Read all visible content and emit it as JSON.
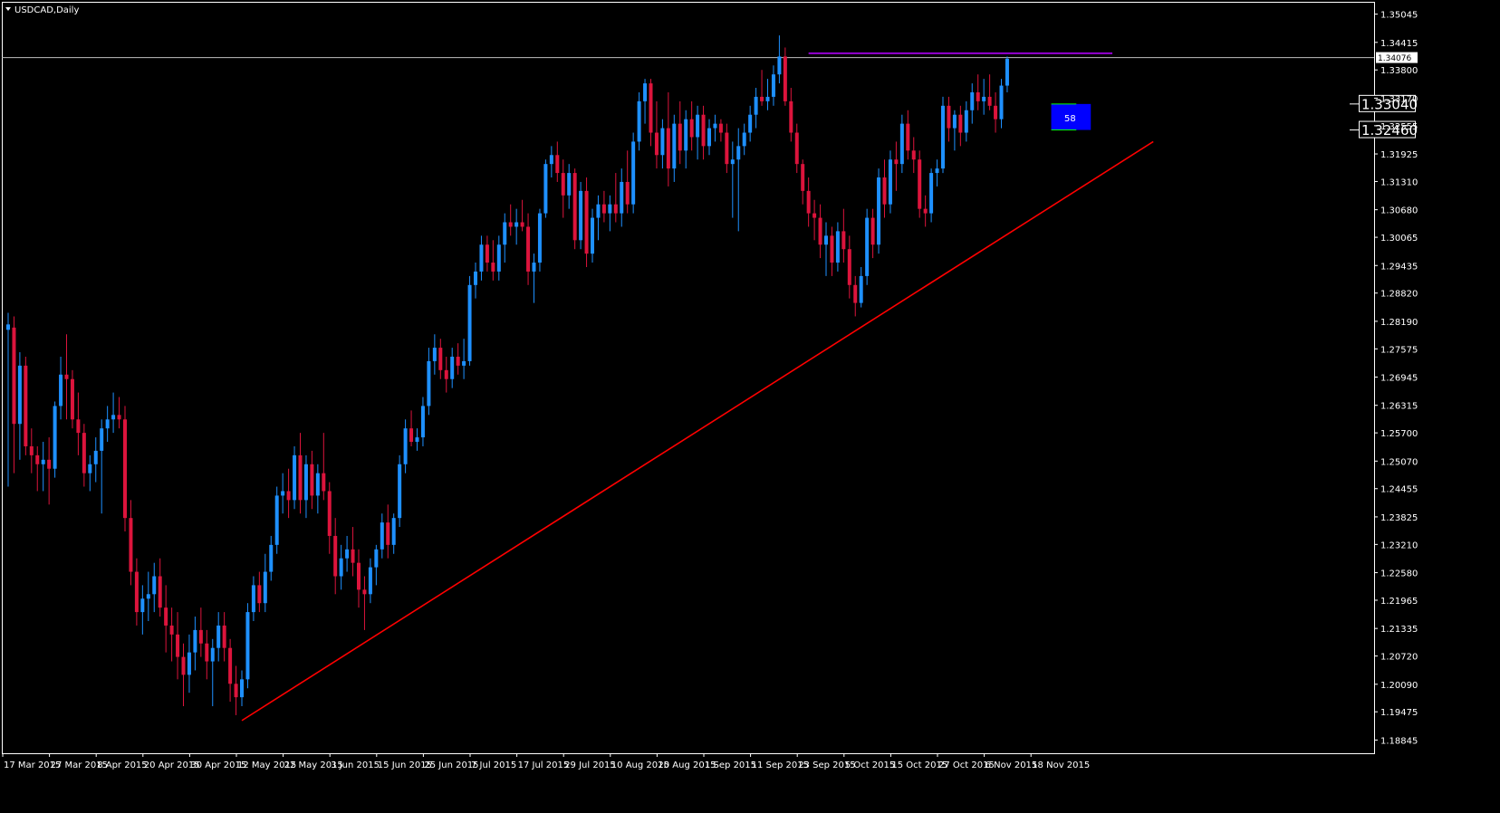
{
  "window": {
    "symbol_title": "USDCAD,Daily"
  },
  "colors": {
    "background": "#000000",
    "frame": "#ffffff",
    "bull": "#1e90ff",
    "bear": "#dc143c",
    "trendline": "#ff0000",
    "resistance": "#9400d3",
    "range_box": "#0000ff",
    "range_edge": "#00ff00",
    "price_line": "#c0c0c0"
  },
  "chart_data": {
    "type": "candlestick",
    "title": "USDCAD,Daily",
    "ylim": [
      1.1855,
      1.3532
    ],
    "y_ticks": [
      "1.35045",
      "1.34415",
      "1.33800",
      "1.33170",
      "1.32555",
      "1.31925",
      "1.31310",
      "1.30680",
      "1.30065",
      "1.29435",
      "1.28820",
      "1.28190",
      "1.27575",
      "1.26945",
      "1.26315",
      "1.25700",
      "1.25070",
      "1.24455",
      "1.23825",
      "1.23210",
      "1.22580",
      "1.21965",
      "1.21335",
      "1.20720",
      "1.20090",
      "1.19475",
      "1.18845"
    ],
    "x_ticks": [
      {
        "label": "17 Mar 2015",
        "bar": 0
      },
      {
        "label": "27 Mar 2015",
        "bar": 8
      },
      {
        "label": "8 Apr 2015",
        "bar": 16
      },
      {
        "label": "20 Apr 2015",
        "bar": 24
      },
      {
        "label": "30 Apr 2015",
        "bar": 32
      },
      {
        "label": "12 May 2015",
        "bar": 40
      },
      {
        "label": "22 May 2015",
        "bar": 48
      },
      {
        "label": "3 Jun 2015",
        "bar": 56
      },
      {
        "label": "15 Jun 2015",
        "bar": 64
      },
      {
        "label": "25 Jun 2015",
        "bar": 72
      },
      {
        "label": "7 Jul 2015",
        "bar": 80
      },
      {
        "label": "17 Jul 2015",
        "bar": 88
      },
      {
        "label": "29 Jul 2015",
        "bar": 96
      },
      {
        "label": "10 Aug 2015",
        "bar": 104
      },
      {
        "label": "20 Aug 2015",
        "bar": 112
      },
      {
        "label": "1 Sep 2015",
        "bar": 120
      },
      {
        "label": "11 Sep 2015",
        "bar": 128
      },
      {
        "label": "23 Sep 2015",
        "bar": 136
      },
      {
        "label": "5 Oct 2015",
        "bar": 144
      },
      {
        "label": "15 Oct 2015",
        "bar": 152
      },
      {
        "label": "27 Oct 2015",
        "bar": 160
      },
      {
        "label": "6 Nov 2015",
        "bar": 168
      },
      {
        "label": "18 Nov 2015",
        "bar": 176
      }
    ],
    "current_price": "1.34076",
    "current_price_value": 1.34076,
    "candles": [
      {
        "o": 1.28,
        "h": 1.2838,
        "l": 1.245,
        "c": 1.2812
      },
      {
        "o": 1.2805,
        "h": 1.283,
        "l": 1.248,
        "c": 1.259
      },
      {
        "o": 1.259,
        "h": 1.275,
        "l": 1.251,
        "c": 1.272
      },
      {
        "o": 1.272,
        "h": 1.274,
        "l": 1.252,
        "c": 1.254
      },
      {
        "o": 1.254,
        "h": 1.258,
        "l": 1.248,
        "c": 1.252
      },
      {
        "o": 1.252,
        "h": 1.254,
        "l": 1.244,
        "c": 1.25
      },
      {
        "o": 1.25,
        "h": 1.255,
        "l": 1.244,
        "c": 1.251
      },
      {
        "o": 1.251,
        "h": 1.256,
        "l": 1.241,
        "c": 1.249
      },
      {
        "o": 1.249,
        "h": 1.264,
        "l": 1.247,
        "c": 1.263
      },
      {
        "o": 1.263,
        "h": 1.274,
        "l": 1.26,
        "c": 1.27
      },
      {
        "o": 1.27,
        "h": 1.279,
        "l": 1.26,
        "c": 1.269
      },
      {
        "o": 1.269,
        "h": 1.271,
        "l": 1.258,
        "c": 1.26
      },
      {
        "o": 1.26,
        "h": 1.266,
        "l": 1.252,
        "c": 1.257
      },
      {
        "o": 1.257,
        "h": 1.259,
        "l": 1.245,
        "c": 1.248
      },
      {
        "o": 1.248,
        "h": 1.252,
        "l": 1.244,
        "c": 1.25
      },
      {
        "o": 1.25,
        "h": 1.256,
        "l": 1.246,
        "c": 1.253
      },
      {
        "o": 1.253,
        "h": 1.26,
        "l": 1.239,
        "c": 1.258
      },
      {
        "o": 1.258,
        "h": 1.263,
        "l": 1.255,
        "c": 1.26
      },
      {
        "o": 1.26,
        "h": 1.266,
        "l": 1.257,
        "c": 1.261
      },
      {
        "o": 1.261,
        "h": 1.265,
        "l": 1.258,
        "c": 1.26
      },
      {
        "o": 1.26,
        "h": 1.263,
        "l": 1.235,
        "c": 1.238
      },
      {
        "o": 1.238,
        "h": 1.242,
        "l": 1.223,
        "c": 1.226
      },
      {
        "o": 1.226,
        "h": 1.229,
        "l": 1.214,
        "c": 1.217
      },
      {
        "o": 1.217,
        "h": 1.223,
        "l": 1.212,
        "c": 1.22
      },
      {
        "o": 1.22,
        "h": 1.226,
        "l": 1.215,
        "c": 1.221
      },
      {
        "o": 1.221,
        "h": 1.228,
        "l": 1.217,
        "c": 1.225
      },
      {
        "o": 1.225,
        "h": 1.229,
        "l": 1.216,
        "c": 1.218
      },
      {
        "o": 1.218,
        "h": 1.223,
        "l": 1.208,
        "c": 1.214
      },
      {
        "o": 1.214,
        "h": 1.218,
        "l": 1.206,
        "c": 1.212
      },
      {
        "o": 1.212,
        "h": 1.217,
        "l": 1.202,
        "c": 1.207
      },
      {
        "o": 1.207,
        "h": 1.21,
        "l": 1.196,
        "c": 1.203
      },
      {
        "o": 1.203,
        "h": 1.212,
        "l": 1.199,
        "c": 1.208
      },
      {
        "o": 1.208,
        "h": 1.216,
        "l": 1.204,
        "c": 1.213
      },
      {
        "o": 1.213,
        "h": 1.218,
        "l": 1.207,
        "c": 1.21
      },
      {
        "o": 1.21,
        "h": 1.213,
        "l": 1.202,
        "c": 1.206
      },
      {
        "o": 1.206,
        "h": 1.211,
        "l": 1.196,
        "c": 1.209
      },
      {
        "o": 1.209,
        "h": 1.217,
        "l": 1.206,
        "c": 1.214
      },
      {
        "o": 1.214,
        "h": 1.217,
        "l": 1.206,
        "c": 1.209
      },
      {
        "o": 1.209,
        "h": 1.211,
        "l": 1.197,
        "c": 1.201
      },
      {
        "o": 1.201,
        "h": 1.205,
        "l": 1.194,
        "c": 1.198
      },
      {
        "o": 1.198,
        "h": 1.204,
        "l": 1.196,
        "c": 1.202
      },
      {
        "o": 1.202,
        "h": 1.219,
        "l": 1.2,
        "c": 1.217
      },
      {
        "o": 1.217,
        "h": 1.225,
        "l": 1.215,
        "c": 1.223
      },
      {
        "o": 1.223,
        "h": 1.226,
        "l": 1.217,
        "c": 1.219
      },
      {
        "o": 1.219,
        "h": 1.23,
        "l": 1.217,
        "c": 1.226
      },
      {
        "o": 1.226,
        "h": 1.234,
        "l": 1.224,
        "c": 1.232
      },
      {
        "o": 1.232,
        "h": 1.245,
        "l": 1.23,
        "c": 1.243
      },
      {
        "o": 1.243,
        "h": 1.248,
        "l": 1.239,
        "c": 1.244
      },
      {
        "o": 1.244,
        "h": 1.249,
        "l": 1.238,
        "c": 1.242
      },
      {
        "o": 1.242,
        "h": 1.254,
        "l": 1.24,
        "c": 1.252
      },
      {
        "o": 1.252,
        "h": 1.257,
        "l": 1.239,
        "c": 1.242
      },
      {
        "o": 1.242,
        "h": 1.252,
        "l": 1.238,
        "c": 1.25
      },
      {
        "o": 1.25,
        "h": 1.253,
        "l": 1.24,
        "c": 1.243
      },
      {
        "o": 1.243,
        "h": 1.25,
        "l": 1.239,
        "c": 1.248
      },
      {
        "o": 1.248,
        "h": 1.257,
        "l": 1.242,
        "c": 1.244
      },
      {
        "o": 1.244,
        "h": 1.246,
        "l": 1.23,
        "c": 1.234
      },
      {
        "o": 1.234,
        "h": 1.238,
        "l": 1.221,
        "c": 1.225
      },
      {
        "o": 1.225,
        "h": 1.232,
        "l": 1.222,
        "c": 1.229
      },
      {
        "o": 1.229,
        "h": 1.234,
        "l": 1.226,
        "c": 1.231
      },
      {
        "o": 1.231,
        "h": 1.236,
        "l": 1.225,
        "c": 1.228
      },
      {
        "o": 1.228,
        "h": 1.231,
        "l": 1.218,
        "c": 1.222
      },
      {
        "o": 1.222,
        "h": 1.225,
        "l": 1.213,
        "c": 1.221
      },
      {
        "o": 1.221,
        "h": 1.229,
        "l": 1.219,
        "c": 1.227
      },
      {
        "o": 1.227,
        "h": 1.232,
        "l": 1.223,
        "c": 1.231
      },
      {
        "o": 1.231,
        "h": 1.239,
        "l": 1.229,
        "c": 1.237
      },
      {
        "o": 1.237,
        "h": 1.241,
        "l": 1.229,
        "c": 1.232
      },
      {
        "o": 1.232,
        "h": 1.239,
        "l": 1.23,
        "c": 1.238
      },
      {
        "o": 1.238,
        "h": 1.252,
        "l": 1.236,
        "c": 1.25
      },
      {
        "o": 1.25,
        "h": 1.26,
        "l": 1.248,
        "c": 1.258
      },
      {
        "o": 1.258,
        "h": 1.262,
        "l": 1.254,
        "c": 1.255
      },
      {
        "o": 1.255,
        "h": 1.258,
        "l": 1.253,
        "c": 1.256
      },
      {
        "o": 1.256,
        "h": 1.265,
        "l": 1.254,
        "c": 1.263
      },
      {
        "o": 1.263,
        "h": 1.276,
        "l": 1.261,
        "c": 1.273
      },
      {
        "o": 1.273,
        "h": 1.279,
        "l": 1.27,
        "c": 1.276
      },
      {
        "o": 1.276,
        "h": 1.278,
        "l": 1.269,
        "c": 1.271
      },
      {
        "o": 1.271,
        "h": 1.274,
        "l": 1.266,
        "c": 1.269
      },
      {
        "o": 1.269,
        "h": 1.276,
        "l": 1.267,
        "c": 1.274
      },
      {
        "o": 1.274,
        "h": 1.277,
        "l": 1.27,
        "c": 1.272
      },
      {
        "o": 1.272,
        "h": 1.278,
        "l": 1.269,
        "c": 1.273
      },
      {
        "o": 1.273,
        "h": 1.292,
        "l": 1.272,
        "c": 1.29
      },
      {
        "o": 1.29,
        "h": 1.295,
        "l": 1.287,
        "c": 1.293
      },
      {
        "o": 1.293,
        "h": 1.301,
        "l": 1.291,
        "c": 1.299
      },
      {
        "o": 1.299,
        "h": 1.301,
        "l": 1.293,
        "c": 1.295
      },
      {
        "o": 1.295,
        "h": 1.3,
        "l": 1.291,
        "c": 1.293
      },
      {
        "o": 1.293,
        "h": 1.301,
        "l": 1.291,
        "c": 1.299
      },
      {
        "o": 1.299,
        "h": 1.306,
        "l": 1.295,
        "c": 1.304
      },
      {
        "o": 1.304,
        "h": 1.308,
        "l": 1.301,
        "c": 1.303
      },
      {
        "o": 1.303,
        "h": 1.307,
        "l": 1.299,
        "c": 1.304
      },
      {
        "o": 1.304,
        "h": 1.309,
        "l": 1.302,
        "c": 1.303
      },
      {
        "o": 1.303,
        "h": 1.306,
        "l": 1.29,
        "c": 1.293
      },
      {
        "o": 1.293,
        "h": 1.297,
        "l": 1.286,
        "c": 1.295
      },
      {
        "o": 1.295,
        "h": 1.307,
        "l": 1.293,
        "c": 1.306
      },
      {
        "o": 1.306,
        "h": 1.318,
        "l": 1.305,
        "c": 1.317
      },
      {
        "o": 1.317,
        "h": 1.321,
        "l": 1.314,
        "c": 1.319
      },
      {
        "o": 1.319,
        "h": 1.322,
        "l": 1.313,
        "c": 1.315
      },
      {
        "o": 1.315,
        "h": 1.318,
        "l": 1.305,
        "c": 1.31
      },
      {
        "o": 1.31,
        "h": 1.317,
        "l": 1.307,
        "c": 1.315
      },
      {
        "o": 1.315,
        "h": 1.316,
        "l": 1.298,
        "c": 1.3
      },
      {
        "o": 1.3,
        "h": 1.313,
        "l": 1.298,
        "c": 1.311
      },
      {
        "o": 1.311,
        "h": 1.314,
        "l": 1.294,
        "c": 1.297
      },
      {
        "o": 1.297,
        "h": 1.307,
        "l": 1.295,
        "c": 1.305
      },
      {
        "o": 1.305,
        "h": 1.31,
        "l": 1.3,
        "c": 1.308
      },
      {
        "o": 1.308,
        "h": 1.311,
        "l": 1.304,
        "c": 1.306
      },
      {
        "o": 1.306,
        "h": 1.31,
        "l": 1.302,
        "c": 1.308
      },
      {
        "o": 1.308,
        "h": 1.315,
        "l": 1.304,
        "c": 1.306
      },
      {
        "o": 1.306,
        "h": 1.316,
        "l": 1.303,
        "c": 1.313
      },
      {
        "o": 1.313,
        "h": 1.32,
        "l": 1.306,
        "c": 1.308
      },
      {
        "o": 1.308,
        "h": 1.324,
        "l": 1.306,
        "c": 1.322
      },
      {
        "o": 1.322,
        "h": 1.333,
        "l": 1.32,
        "c": 1.331
      },
      {
        "o": 1.331,
        "h": 1.336,
        "l": 1.326,
        "c": 1.335
      },
      {
        "o": 1.335,
        "h": 1.336,
        "l": 1.321,
        "c": 1.324
      },
      {
        "o": 1.324,
        "h": 1.331,
        "l": 1.316,
        "c": 1.319
      },
      {
        "o": 1.319,
        "h": 1.327,
        "l": 1.316,
        "c": 1.325
      },
      {
        "o": 1.325,
        "h": 1.333,
        "l": 1.312,
        "c": 1.316
      },
      {
        "o": 1.316,
        "h": 1.328,
        "l": 1.313,
        "c": 1.326
      },
      {
        "o": 1.326,
        "h": 1.331,
        "l": 1.317,
        "c": 1.32
      },
      {
        "o": 1.32,
        "h": 1.329,
        "l": 1.316,
        "c": 1.327
      },
      {
        "o": 1.327,
        "h": 1.331,
        "l": 1.32,
        "c": 1.323
      },
      {
        "o": 1.323,
        "h": 1.33,
        "l": 1.318,
        "c": 1.328
      },
      {
        "o": 1.328,
        "h": 1.33,
        "l": 1.318,
        "c": 1.321
      },
      {
        "o": 1.321,
        "h": 1.327,
        "l": 1.319,
        "c": 1.325
      },
      {
        "o": 1.325,
        "h": 1.328,
        "l": 1.322,
        "c": 1.326
      },
      {
        "o": 1.326,
        "h": 1.327,
        "l": 1.322,
        "c": 1.324
      },
      {
        "o": 1.324,
        "h": 1.326,
        "l": 1.315,
        "c": 1.317
      },
      {
        "o": 1.317,
        "h": 1.322,
        "l": 1.305,
        "c": 1.318
      },
      {
        "o": 1.318,
        "h": 1.325,
        "l": 1.302,
        "c": 1.321
      },
      {
        "o": 1.321,
        "h": 1.326,
        "l": 1.319,
        "c": 1.324
      },
      {
        "o": 1.324,
        "h": 1.33,
        "l": 1.322,
        "c": 1.328
      },
      {
        "o": 1.328,
        "h": 1.334,
        "l": 1.325,
        "c": 1.332
      },
      {
        "o": 1.332,
        "h": 1.338,
        "l": 1.33,
        "c": 1.331
      },
      {
        "o": 1.331,
        "h": 1.336,
        "l": 1.329,
        "c": 1.332
      },
      {
        "o": 1.332,
        "h": 1.339,
        "l": 1.33,
        "c": 1.337
      },
      {
        "o": 1.337,
        "h": 1.3457,
        "l": 1.335,
        "c": 1.341
      },
      {
        "o": 1.341,
        "h": 1.343,
        "l": 1.33,
        "c": 1.331
      },
      {
        "o": 1.331,
        "h": 1.334,
        "l": 1.322,
        "c": 1.324
      },
      {
        "o": 1.324,
        "h": 1.326,
        "l": 1.315,
        "c": 1.317
      },
      {
        "o": 1.317,
        "h": 1.318,
        "l": 1.308,
        "c": 1.311
      },
      {
        "o": 1.311,
        "h": 1.314,
        "l": 1.303,
        "c": 1.306
      },
      {
        "o": 1.306,
        "h": 1.309,
        "l": 1.3,
        "c": 1.305
      },
      {
        "o": 1.305,
        "h": 1.308,
        "l": 1.296,
        "c": 1.299
      },
      {
        "o": 1.299,
        "h": 1.304,
        "l": 1.292,
        "c": 1.301
      },
      {
        "o": 1.301,
        "h": 1.303,
        "l": 1.292,
        "c": 1.295
      },
      {
        "o": 1.295,
        "h": 1.304,
        "l": 1.293,
        "c": 1.302
      },
      {
        "o": 1.302,
        "h": 1.307,
        "l": 1.295,
        "c": 1.298
      },
      {
        "o": 1.298,
        "h": 1.301,
        "l": 1.287,
        "c": 1.29
      },
      {
        "o": 1.29,
        "h": 1.292,
        "l": 1.283,
        "c": 1.286
      },
      {
        "o": 1.286,
        "h": 1.294,
        "l": 1.285,
        "c": 1.292
      },
      {
        "o": 1.292,
        "h": 1.307,
        "l": 1.29,
        "c": 1.305
      },
      {
        "o": 1.305,
        "h": 1.307,
        "l": 1.296,
        "c": 1.299
      },
      {
        "o": 1.299,
        "h": 1.316,
        "l": 1.297,
        "c": 1.314
      },
      {
        "o": 1.314,
        "h": 1.318,
        "l": 1.305,
        "c": 1.308
      },
      {
        "o": 1.308,
        "h": 1.32,
        "l": 1.306,
        "c": 1.318
      },
      {
        "o": 1.318,
        "h": 1.322,
        "l": 1.311,
        "c": 1.317
      },
      {
        "o": 1.317,
        "h": 1.328,
        "l": 1.315,
        "c": 1.326
      },
      {
        "o": 1.326,
        "h": 1.329,
        "l": 1.318,
        "c": 1.32
      },
      {
        "o": 1.32,
        "h": 1.323,
        "l": 1.315,
        "c": 1.318
      },
      {
        "o": 1.318,
        "h": 1.32,
        "l": 1.305,
        "c": 1.307
      },
      {
        "o": 1.307,
        "h": 1.31,
        "l": 1.303,
        "c": 1.306
      },
      {
        "o": 1.306,
        "h": 1.316,
        "l": 1.304,
        "c": 1.315
      },
      {
        "o": 1.315,
        "h": 1.318,
        "l": 1.312,
        "c": 1.316
      },
      {
        "o": 1.316,
        "h": 1.332,
        "l": 1.315,
        "c": 1.33
      },
      {
        "o": 1.33,
        "h": 1.332,
        "l": 1.322,
        "c": 1.325
      },
      {
        "o": 1.325,
        "h": 1.329,
        "l": 1.32,
        "c": 1.328
      },
      {
        "o": 1.328,
        "h": 1.33,
        "l": 1.321,
        "c": 1.324
      },
      {
        "o": 1.324,
        "h": 1.331,
        "l": 1.322,
        "c": 1.329
      },
      {
        "o": 1.329,
        "h": 1.335,
        "l": 1.326,
        "c": 1.333
      },
      {
        "o": 1.333,
        "h": 1.337,
        "l": 1.329,
        "c": 1.331
      },
      {
        "o": 1.331,
        "h": 1.336,
        "l": 1.328,
        "c": 1.332
      },
      {
        "o": 1.332,
        "h": 1.337,
        "l": 1.329,
        "c": 1.33
      },
      {
        "o": 1.33,
        "h": 1.333,
        "l": 1.324,
        "c": 1.327
      },
      {
        "o": 1.327,
        "h": 1.336,
        "l": 1.325,
        "c": 1.3345
      },
      {
        "o": 1.3345,
        "h": 1.341,
        "l": 1.333,
        "c": 1.3405
      }
    ],
    "trendline": {
      "from": {
        "bar": 40,
        "price": 1.1928
      },
      "to": {
        "bar": 196,
        "price": 1.322
      }
    },
    "resistance": {
      "from_bar": 137,
      "to_bar": 189,
      "price": 1.3417
    },
    "range": {
      "upper": "1.33040",
      "lower": "1.32460",
      "upper_value": 1.3304,
      "lower_value": 1.3246,
      "label": "58",
      "from_bar": 179,
      "to_bar": 185
    }
  }
}
